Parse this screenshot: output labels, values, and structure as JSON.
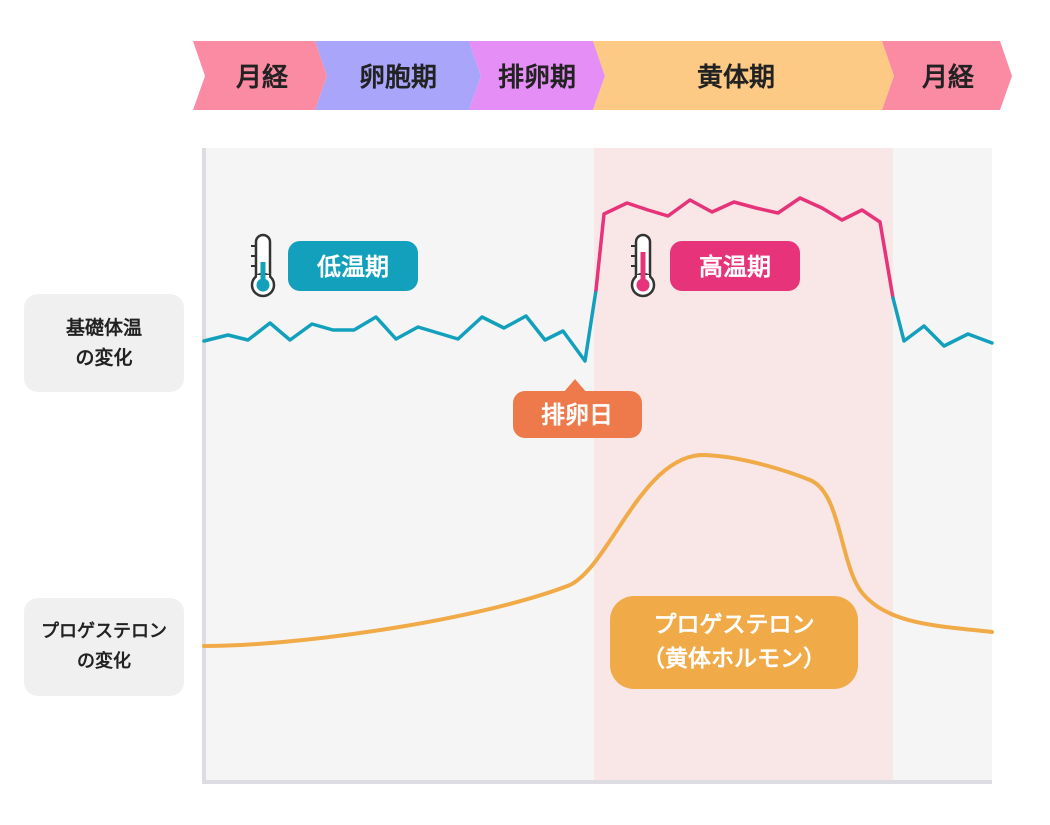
{
  "phases": [
    {
      "label": "月経",
      "color": "#fb8aa3"
    },
    {
      "label": "卵胞期",
      "color": "#a9a5fb"
    },
    {
      "label": "排卵期",
      "color": "#e58ef6"
    },
    {
      "label": "黄体期",
      "color": "#fdca86"
    },
    {
      "label": "月経",
      "color": "#fb8aa3"
    }
  ],
  "side_labels": {
    "bbt": {
      "line1": "基礎体温",
      "line2": "の変化"
    },
    "progesterone": {
      "line1": "プロゲステロン",
      "line2": "の変化"
    }
  },
  "badges": {
    "low_temp": {
      "label": "低温期",
      "color": "#12a0bd"
    },
    "high_temp": {
      "label": "高温期",
      "color": "#e6337a"
    },
    "ovulation_day": {
      "label": "排卵日",
      "color": "#ee7a4b"
    },
    "progesterone": {
      "line1": "プロゲステロン",
      "line2": "（黄体ホルモン）",
      "color": "#f1aa48"
    }
  },
  "colors": {
    "panel_bg": "#f5f5f5",
    "luteal_bg": "#f9e6e6",
    "axis": "#dcdce2",
    "low_line": "#12a0bd",
    "high_line": "#e6337a",
    "progesterone_line": "#f1aa48"
  }
}
